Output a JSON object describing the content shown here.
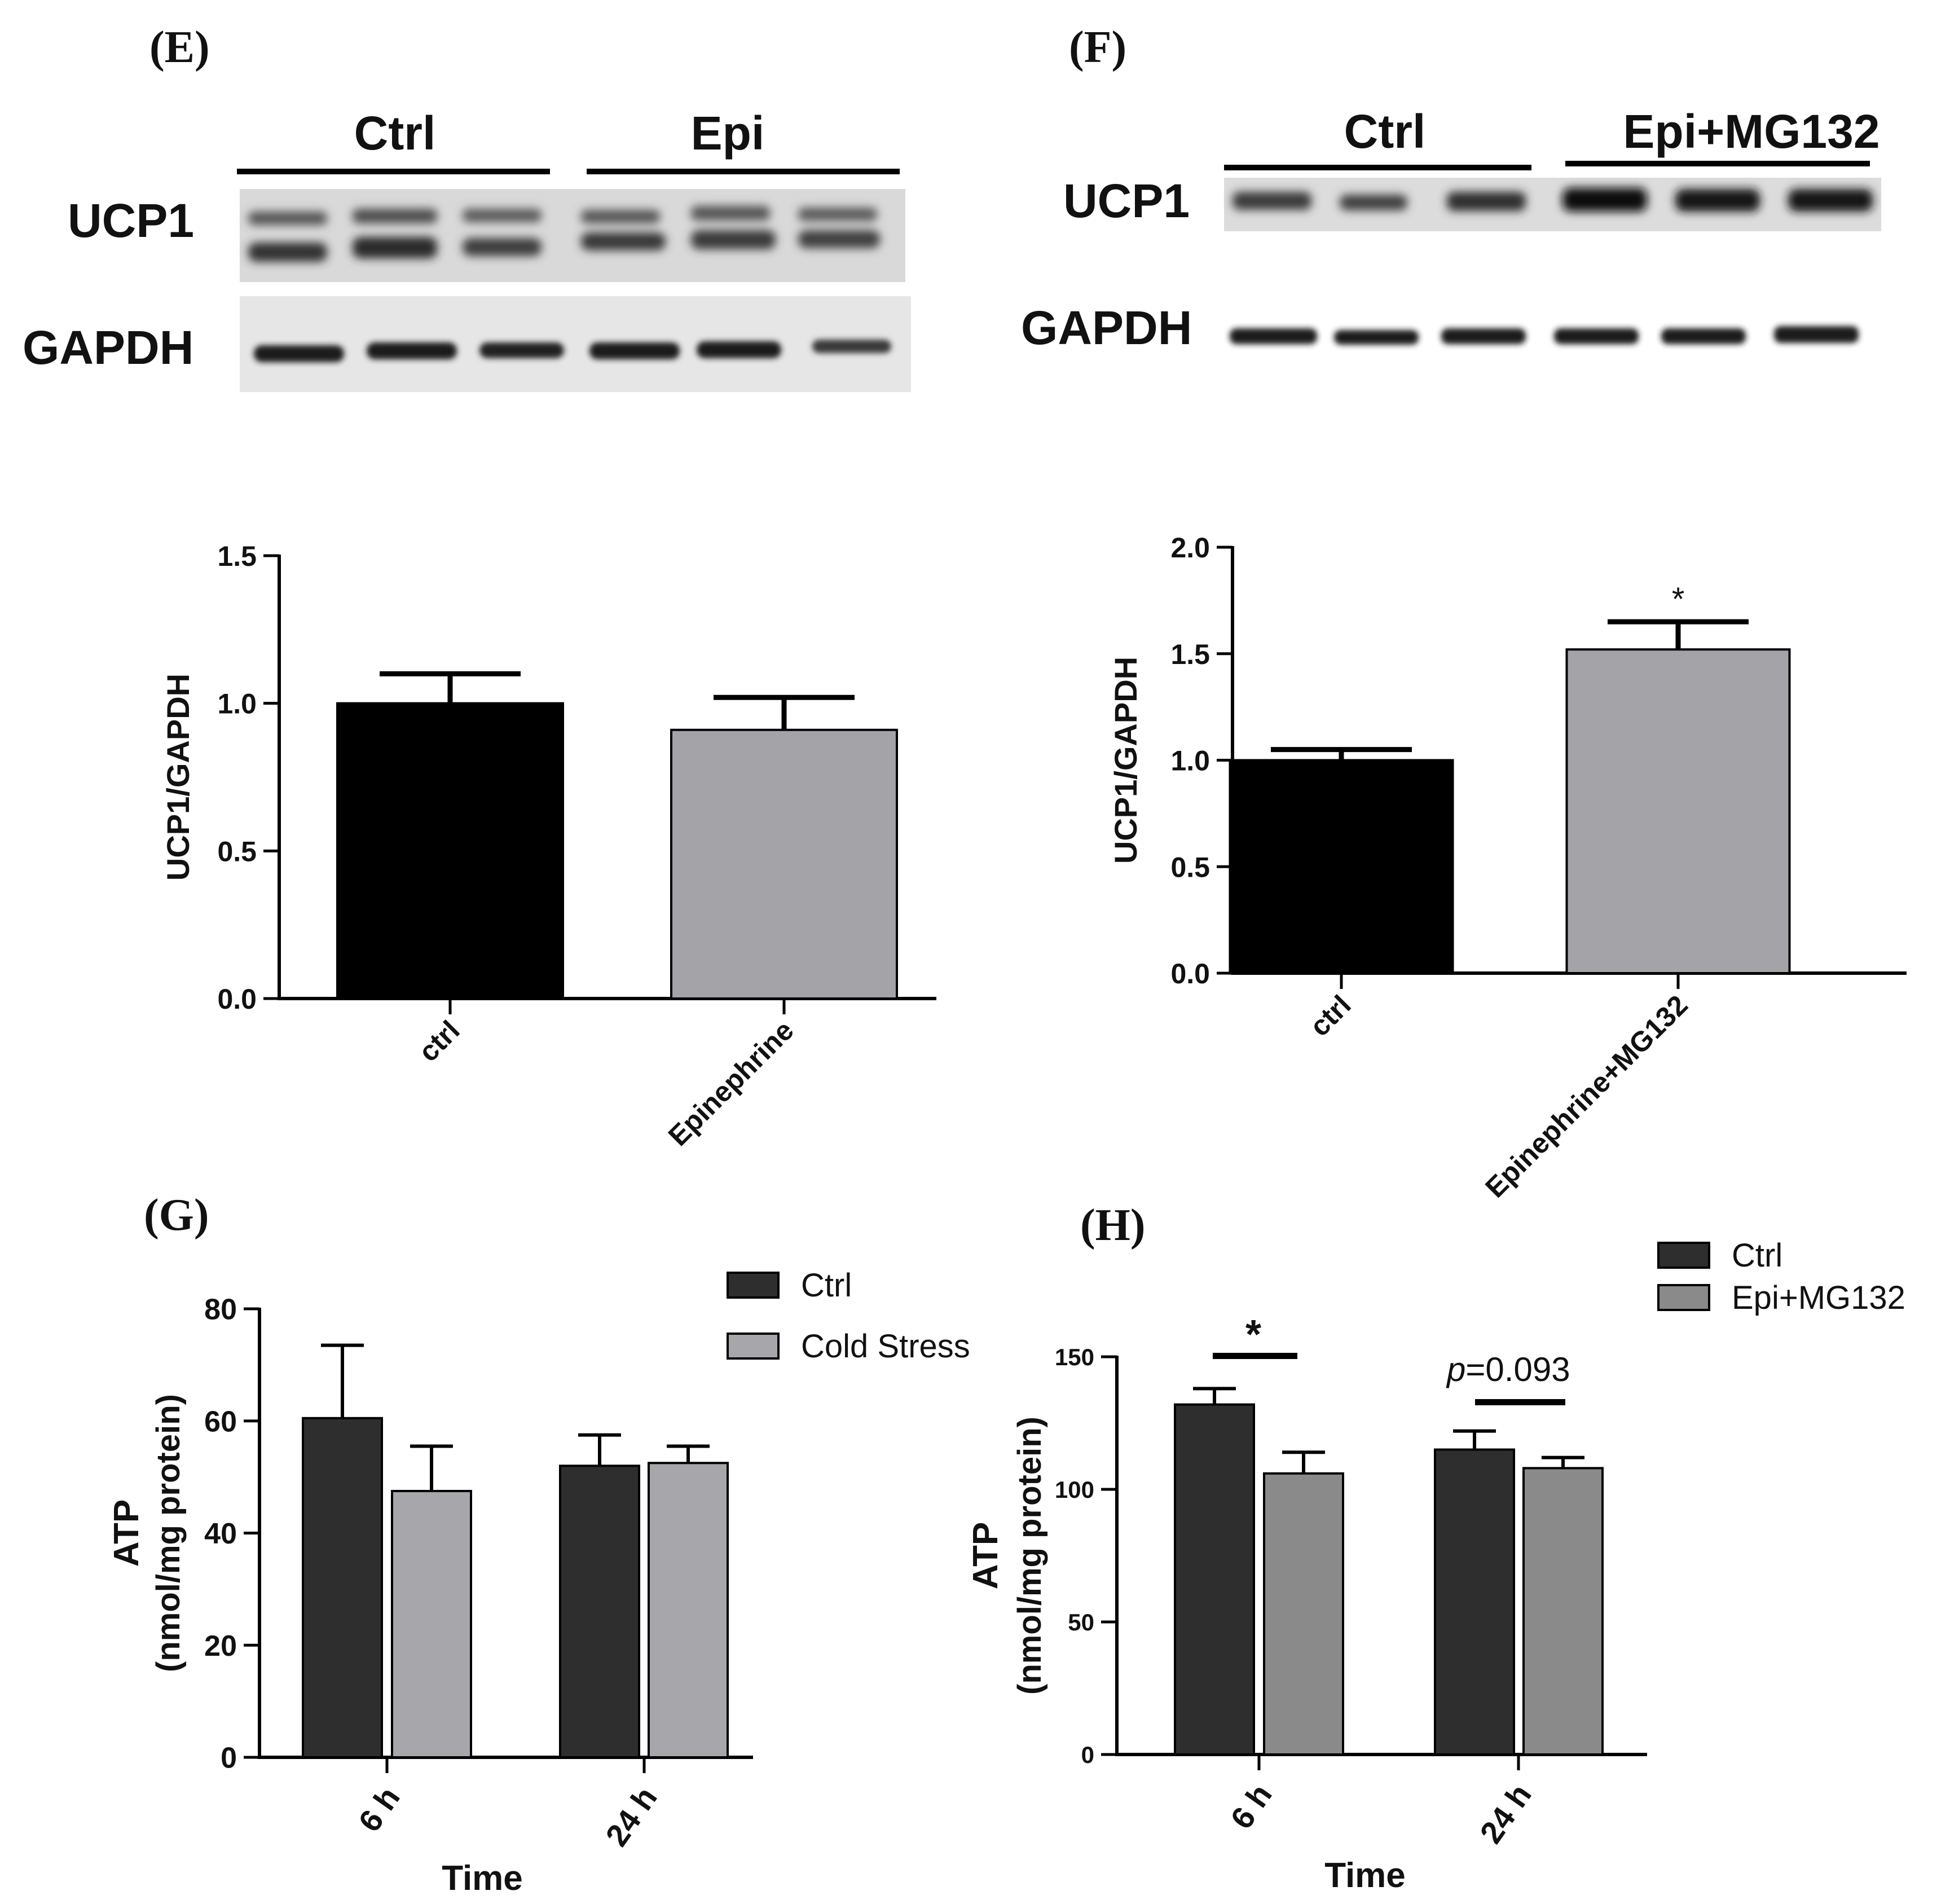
{
  "panels": {
    "E": {
      "letter": "(E)",
      "blot_groups": [
        "Ctrl",
        "Epi"
      ],
      "row_labels": [
        "UCP1",
        "GAPDH"
      ]
    },
    "F": {
      "letter": "(F)",
      "blot_groups": [
        "Ctrl",
        "Epi+MG132"
      ],
      "row_labels": [
        "UCP1",
        "GAPDH"
      ]
    },
    "G": {
      "letter": "(G)"
    },
    "H": {
      "letter": "(H)"
    }
  },
  "colors": {
    "black": "#000000",
    "gray": "#a3a3a8",
    "dark": "#2e2e2e",
    "light_gray": "#a7a7ab",
    "mid_gray": "#8a8a8a"
  },
  "chart_data": [
    {
      "id": "E",
      "type": "bar",
      "categories": [
        "ctrl",
        "Epinephrine"
      ],
      "values": [
        1.0,
        0.91
      ],
      "errors": [
        0.1,
        0.11
      ],
      "ylabel": "UCP1/GAPDH",
      "xlabel": "",
      "ylim": [
        0,
        1.5
      ],
      "yticks": [
        "0.0",
        "0.5",
        "1.0",
        "1.5"
      ],
      "bar_colors": [
        "#000000",
        "#a3a3a8"
      ]
    },
    {
      "id": "F",
      "type": "bar",
      "categories": [
        "ctrl",
        "Epinephrine+MG132"
      ],
      "values": [
        1.0,
        1.52
      ],
      "errors": [
        0.05,
        0.13
      ],
      "ylabel": "UCP1/GAPDH",
      "xlabel": "",
      "ylim": [
        0,
        2.0
      ],
      "yticks": [
        "0.0",
        "0.5",
        "1.0",
        "1.5",
        "2.0"
      ],
      "bar_colors": [
        "#000000",
        "#a3a3a8"
      ],
      "annotations": [
        "*"
      ]
    },
    {
      "id": "G",
      "type": "bar",
      "categories": [
        "6 h",
        "24 h"
      ],
      "series": [
        {
          "name": "Ctrl",
          "values": [
            60.5,
            52
          ],
          "errors": [
            13,
            5.5
          ]
        },
        {
          "name": "Cold Stress",
          "values": [
            47.5,
            52.5
          ],
          "errors": [
            8,
            3
          ]
        }
      ],
      "ylabel": "ATP",
      "ylabel2": "(nmol/mg protein)",
      "xlabel": "Time",
      "ylim": [
        0,
        80
      ],
      "yticks": [
        "0",
        "20",
        "40",
        "60",
        "80"
      ],
      "legend": "top-right"
    },
    {
      "id": "H",
      "type": "bar",
      "categories": [
        "6 h",
        "24 h"
      ],
      "series": [
        {
          "name": "Ctrl",
          "values": [
            132,
            115
          ],
          "errors": [
            6,
            7
          ]
        },
        {
          "name": "Epi+MG132",
          "values": [
            106,
            108
          ],
          "errors": [
            8,
            4
          ]
        }
      ],
      "ylabel": "ATP",
      "ylabel2": "(nmol/mg protein)",
      "xlabel": "Time",
      "ylim": [
        0,
        150
      ],
      "yticks": [
        "0",
        "50",
        "100",
        "150"
      ],
      "legend": "top-right",
      "annotations": [
        "*",
        "p",
        "=0.093"
      ]
    }
  ]
}
